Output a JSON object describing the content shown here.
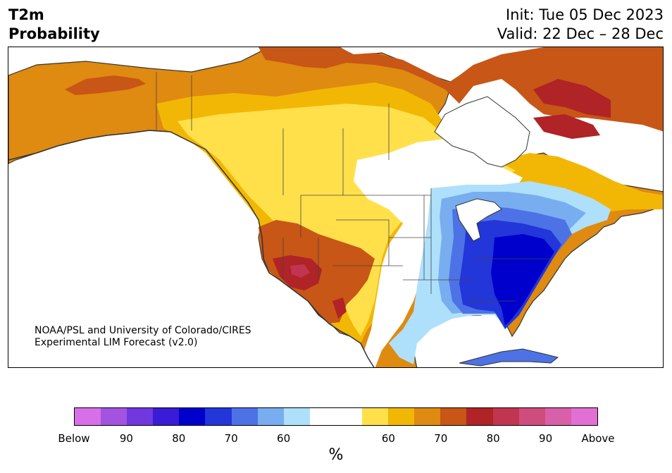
{
  "header": {
    "title_line1": "T2m",
    "title_line2": "Probability",
    "init": "Init: Tue 05 Dec 2023",
    "valid": "Valid: 22 Dec – 28 Dec"
  },
  "map": {
    "region": "North America",
    "credit_line1": "NOAA/PSL and University of Colorado/CIRES",
    "credit_line2": "Experimental LIM Forecast (v2.0)"
  },
  "colorbar": {
    "colors": [
      "#d770e8",
      "#a453e0",
      "#7038de",
      "#3a1bd6",
      "#0000cc",
      "#2336d9",
      "#4d72e6",
      "#78aef0",
      "#aee0fb",
      "#ffffff",
      "#ffffff",
      "#ffe04a",
      "#f2b705",
      "#df8a10",
      "#c85616",
      "#b02326",
      "#c13550",
      "#cf4d7c",
      "#d860a8",
      "#e26fd3"
    ],
    "labels": [
      "Below",
      "90",
      "80",
      "70",
      "60",
      "60",
      "70",
      "80",
      "90",
      "Above"
    ],
    "units": "%"
  }
}
